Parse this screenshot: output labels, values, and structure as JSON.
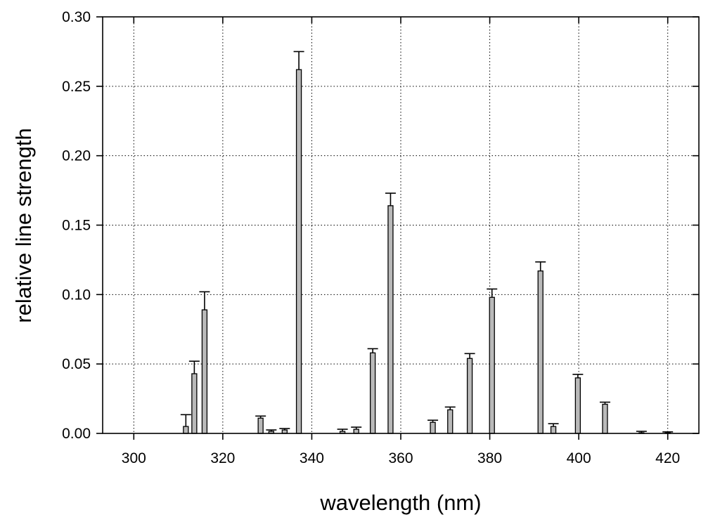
{
  "chart_data": {
    "type": "bar",
    "title": "",
    "xlabel": "wavelength (nm)",
    "ylabel": "relative line strength",
    "xlim": [
      293,
      427
    ],
    "ylim": [
      0,
      0.3
    ],
    "grid": true,
    "legend": "none",
    "bar_color": "#b9b9b9",
    "x_ticks": [
      {
        "value": 300,
        "label": "300"
      },
      {
        "value": 320,
        "label": "320"
      },
      {
        "value": 340,
        "label": "340"
      },
      {
        "value": 360,
        "label": "360"
      },
      {
        "value": 380,
        "label": "380"
      },
      {
        "value": 400,
        "label": "400"
      },
      {
        "value": 420,
        "label": "420"
      }
    ],
    "y_ticks": [
      {
        "value": 0.0,
        "label": "0.00"
      },
      {
        "value": 0.05,
        "label": "0.05"
      },
      {
        "value": 0.1,
        "label": "0.10"
      },
      {
        "value": 0.15,
        "label": "0.15"
      },
      {
        "value": 0.2,
        "label": "0.20"
      },
      {
        "value": 0.25,
        "label": "0.25"
      },
      {
        "value": 0.3,
        "label": "0.30"
      }
    ],
    "series": [
      {
        "points": [
          {
            "x": 311.7,
            "y": 0.005,
            "err": 0.0135
          },
          {
            "x": 313.6,
            "y": 0.043,
            "err": 0.052
          },
          {
            "x": 315.9,
            "y": 0.089,
            "err": 0.102
          },
          {
            "x": 328.5,
            "y": 0.011,
            "err": 0.0125
          },
          {
            "x": 330.9,
            "y": 0.0015,
            "err": 0.0025
          },
          {
            "x": 333.9,
            "y": 0.0025,
            "err": 0.0035
          },
          {
            "x": 337.1,
            "y": 0.262,
            "err": 0.275
          },
          {
            "x": 346.9,
            "y": 0.0015,
            "err": 0.003
          },
          {
            "x": 350.0,
            "y": 0.003,
            "err": 0.0045
          },
          {
            "x": 353.7,
            "y": 0.058,
            "err": 0.061
          },
          {
            "x": 357.7,
            "y": 0.164,
            "err": 0.173
          },
          {
            "x": 367.2,
            "y": 0.008,
            "err": 0.0095
          },
          {
            "x": 371.1,
            "y": 0.017,
            "err": 0.019
          },
          {
            "x": 375.5,
            "y": 0.054,
            "err": 0.0575
          },
          {
            "x": 380.5,
            "y": 0.098,
            "err": 0.104
          },
          {
            "x": 391.4,
            "y": 0.117,
            "err": 0.1235
          },
          {
            "x": 394.3,
            "y": 0.005,
            "err": 0.007
          },
          {
            "x": 399.8,
            "y": 0.04,
            "err": 0.0425
          },
          {
            "x": 405.9,
            "y": 0.021,
            "err": 0.0225
          },
          {
            "x": 414.1,
            "y": 0.0005,
            "err": 0.0015
          },
          {
            "x": 420.0,
            "y": 0.0003,
            "err": 0.0011
          }
        ]
      }
    ]
  }
}
